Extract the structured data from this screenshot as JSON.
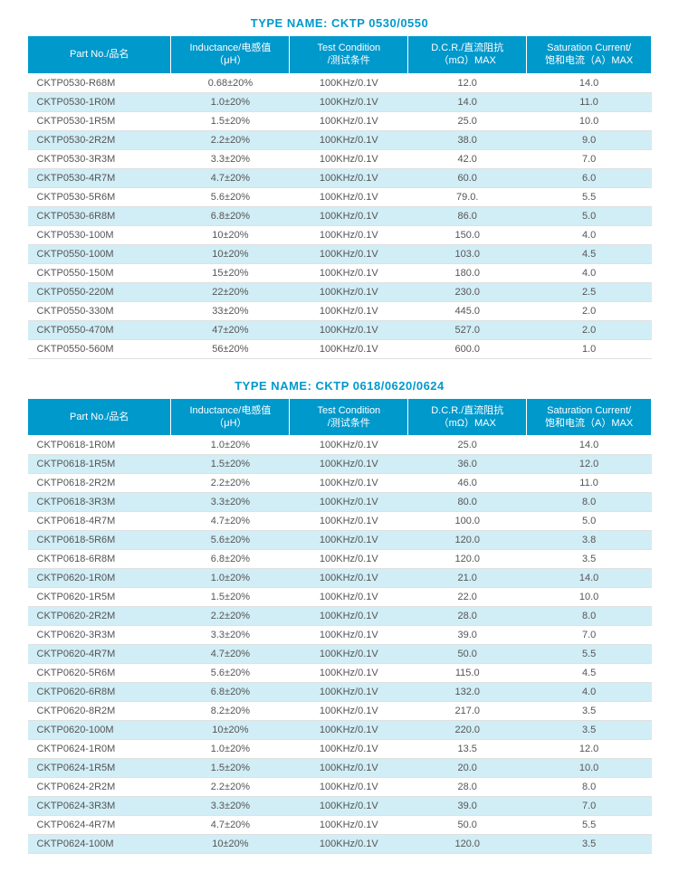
{
  "colors": {
    "accent": "#0099cc",
    "row_even_bg": "#d1edf5",
    "row_odd_bg": "#ffffff",
    "header_text": "#ffffff",
    "body_text": "#555555",
    "border": "#e0e0e0"
  },
  "tables": [
    {
      "title": "TYPE NAME: CKTP 0530/0550",
      "columns": [
        "Part No./品名",
        "Inductance/电感值\n（μH）",
        "Test Condition\n/测试条件",
        "D.C.R./直流阻抗\n（mΩ）MAX",
        "Saturation Current/\n饱和电流（A）MAX"
      ],
      "rows": [
        [
          "CKTP0530-R68M",
          "0.68±20%",
          "100KHz/0.1V",
          "12.0",
          "14.0"
        ],
        [
          "CKTP0530-1R0M",
          "1.0±20%",
          "100KHz/0.1V",
          "14.0",
          "11.0"
        ],
        [
          "CKTP0530-1R5M",
          "1.5±20%",
          "100KHz/0.1V",
          "25.0",
          "10.0"
        ],
        [
          "CKTP0530-2R2M",
          "2.2±20%",
          "100KHz/0.1V",
          "38.0",
          "9.0"
        ],
        [
          "CKTP0530-3R3M",
          "3.3±20%",
          "100KHz/0.1V",
          "42.0",
          "7.0"
        ],
        [
          "CKTP0530-4R7M",
          "4.7±20%",
          "100KHz/0.1V",
          "60.0",
          "6.0"
        ],
        [
          "CKTP0530-5R6M",
          "5.6±20%",
          "100KHz/0.1V",
          "79.0.",
          "5.5"
        ],
        [
          "CKTP0530-6R8M",
          "6.8±20%",
          "100KHz/0.1V",
          "86.0",
          "5.0"
        ],
        [
          "CKTP0530-100M",
          "10±20%",
          "100KHz/0.1V",
          "150.0",
          "4.0"
        ],
        [
          "CKTP0550-100M",
          "10±20%",
          "100KHz/0.1V",
          "103.0",
          "4.5"
        ],
        [
          "CKTP0550-150M",
          "15±20%",
          "100KHz/0.1V",
          "180.0",
          "4.0"
        ],
        [
          "CKTP0550-220M",
          "22±20%",
          "100KHz/0.1V",
          "230.0",
          "2.5"
        ],
        [
          "CKTP0550-330M",
          "33±20%",
          "100KHz/0.1V",
          "445.0",
          "2.0"
        ],
        [
          "CKTP0550-470M",
          "47±20%",
          "100KHz/0.1V",
          "527.0",
          "2.0"
        ],
        [
          "CKTP0550-560M",
          "56±20%",
          "100KHz/0.1V",
          "600.0",
          "1.0"
        ]
      ]
    },
    {
      "title": "TYPE NAME: CKTP 0618/0620/0624",
      "columns": [
        "Part No./品名",
        "Inductance/电感值\n（μH）",
        "Test Condition\n/测试条件",
        "D.C.R./直流阻抗\n（mΩ）MAX",
        "Saturation Current/\n饱和电流（A）MAX"
      ],
      "rows": [
        [
          "CKTP0618-1R0M",
          "1.0±20%",
          "100KHz/0.1V",
          "25.0",
          "14.0"
        ],
        [
          "CKTP0618-1R5M",
          "1.5±20%",
          "100KHz/0.1V",
          "36.0",
          "12.0"
        ],
        [
          "CKTP0618-2R2M",
          "2.2±20%",
          "100KHz/0.1V",
          "46.0",
          "11.0"
        ],
        [
          "CKTP0618-3R3M",
          "3.3±20%",
          "100KHz/0.1V",
          "80.0",
          "8.0"
        ],
        [
          "CKTP0618-4R7M",
          "4.7±20%",
          "100KHz/0.1V",
          "100.0",
          "5.0"
        ],
        [
          "CKTP0618-5R6M",
          "5.6±20%",
          "100KHz/0.1V",
          "120.0",
          "3.8"
        ],
        [
          "CKTP0618-6R8M",
          "6.8±20%",
          "100KHz/0.1V",
          "120.0",
          "3.5"
        ],
        [
          "CKTP0620-1R0M",
          "1.0±20%",
          "100KHz/0.1V",
          "21.0",
          "14.0"
        ],
        [
          "CKTP0620-1R5M",
          "1.5±20%",
          "100KHz/0.1V",
          "22.0",
          "10.0"
        ],
        [
          "CKTP0620-2R2M",
          "2.2±20%",
          "100KHz/0.1V",
          "28.0",
          "8.0"
        ],
        [
          "CKTP0620-3R3M",
          "3.3±20%",
          "100KHz/0.1V",
          "39.0",
          "7.0"
        ],
        [
          "CKTP0620-4R7M",
          "4.7±20%",
          "100KHz/0.1V",
          "50.0",
          "5.5"
        ],
        [
          "CKTP0620-5R6M",
          "5.6±20%",
          "100KHz/0.1V",
          "115.0",
          "4.5"
        ],
        [
          "CKTP0620-6R8M",
          "6.8±20%",
          "100KHz/0.1V",
          "132.0",
          "4.0"
        ],
        [
          "CKTP0620-8R2M",
          "8.2±20%",
          "100KHz/0.1V",
          "217.0",
          "3.5"
        ],
        [
          "CKTP0620-100M",
          "10±20%",
          "100KHz/0.1V",
          "220.0",
          "3.5"
        ],
        [
          "CKTP0624-1R0M",
          "1.0±20%",
          "100KHz/0.1V",
          "13.5",
          "12.0"
        ],
        [
          "CKTP0624-1R5M",
          "1.5±20%",
          "100KHz/0.1V",
          "20.0",
          "10.0"
        ],
        [
          "CKTP0624-2R2M",
          "2.2±20%",
          "100KHz/0.1V",
          "28.0",
          "8.0"
        ],
        [
          "CKTP0624-3R3M",
          "3.3±20%",
          "100KHz/0.1V",
          "39.0",
          "7.0"
        ],
        [
          "CKTP0624-4R7M",
          "4.7±20%",
          "100KHz/0.1V",
          "50.0",
          "5.5"
        ],
        [
          "CKTP0624-100M",
          "10±20%",
          "100KHz/0.1V",
          "120.0",
          "3.5"
        ]
      ]
    }
  ]
}
